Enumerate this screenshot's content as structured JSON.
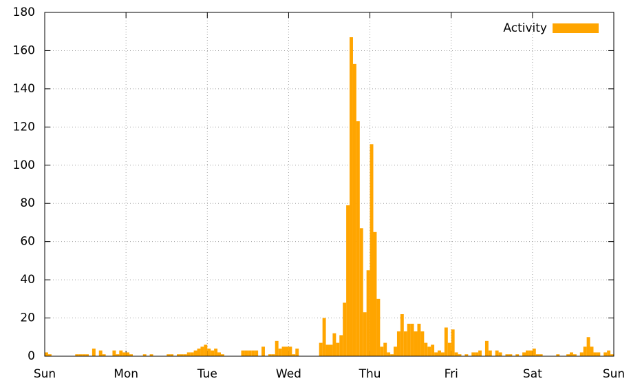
{
  "chart_data": {
    "type": "histogram",
    "series": [
      {
        "name": "Activity",
        "color": "#ffa500",
        "values": [
          2,
          1,
          0,
          0,
          0,
          0,
          0,
          0,
          0,
          1,
          1,
          1,
          1,
          0,
          4,
          0,
          3,
          1,
          0,
          0,
          3,
          1,
          3,
          2,
          2,
          1,
          0,
          0,
          0,
          1,
          0,
          1,
          0,
          0,
          0,
          0,
          1,
          1,
          0,
          1,
          1,
          1,
          2,
          2,
          3,
          4,
          5,
          6,
          4,
          3,
          4,
          2,
          1,
          0,
          0,
          0,
          0,
          0,
          3,
          3,
          3,
          3,
          3,
          0,
          5,
          0,
          1,
          1,
          8,
          4,
          5,
          5,
          5,
          1,
          4,
          0,
          0,
          0,
          0,
          0,
          0,
          7,
          20,
          6,
          6,
          12,
          7,
          11,
          28,
          79,
          167,
          153,
          123,
          67,
          23,
          45,
          111,
          65,
          30,
          5,
          7,
          2,
          1,
          5,
          13,
          22,
          13,
          17,
          17,
          13,
          17,
          13,
          7,
          5,
          6,
          2,
          3,
          2,
          15,
          7,
          14,
          2,
          1,
          0,
          1,
          0,
          2,
          2,
          3,
          0,
          8,
          3,
          0,
          3,
          2,
          0,
          1,
          1,
          0,
          1,
          0,
          2,
          3,
          3,
          4,
          1,
          1,
          0,
          0,
          0,
          0,
          1,
          0,
          0,
          1,
          2,
          1,
          0,
          2,
          5,
          10,
          5,
          2,
          2,
          0,
          2,
          3,
          1
        ]
      }
    ],
    "bins": [
      0,
      1,
      2,
      3,
      4,
      5,
      6,
      7,
      8,
      9,
      10,
      11,
      12,
      13,
      14,
      15,
      16,
      17,
      18,
      19,
      20,
      21,
      22,
      23,
      24,
      25,
      26,
      27,
      28,
      29,
      30,
      31,
      32,
      33,
      34,
      35,
      36,
      37,
      38,
      39,
      40,
      41,
      42,
      43,
      44,
      45,
      46,
      47,
      48,
      49,
      50,
      51,
      52,
      53,
      54,
      55,
      56,
      57,
      58,
      59,
      60,
      61,
      62,
      63,
      64,
      65,
      66,
      67,
      68,
      69,
      70,
      71,
      72,
      73,
      74,
      75,
      76,
      77,
      78,
      79,
      80,
      81,
      82,
      83,
      84,
      85,
      86,
      87,
      88,
      89,
      90,
      91,
      92,
      93,
      94,
      95,
      96,
      97,
      98,
      99,
      100,
      101,
      102,
      103,
      104,
      105,
      106,
      107,
      108,
      109,
      110,
      111,
      112,
      113,
      114,
      115,
      116,
      117,
      118,
      119,
      120,
      121,
      122,
      123,
      124,
      125,
      126,
      127,
      128,
      129,
      130,
      131,
      132,
      133,
      134,
      135,
      136,
      137,
      138,
      139,
      140,
      141,
      142,
      143,
      144,
      145,
      146,
      147,
      148,
      149,
      150,
      151,
      152,
      153,
      154,
      155,
      156,
      157,
      158,
      159,
      160,
      161,
      162,
      163,
      164,
      165,
      166,
      167,
      168
    ],
    "xlim": [
      0,
      168
    ],
    "xticks": [
      {
        "value": 0,
        "label": "Sun"
      },
      {
        "value": 24,
        "label": "Mon"
      },
      {
        "value": 48,
        "label": "Tue"
      },
      {
        "value": 72,
        "label": "Wed"
      },
      {
        "value": 96,
        "label": "Thu"
      },
      {
        "value": 120,
        "label": "Fri"
      },
      {
        "value": 144,
        "label": "Sat"
      },
      {
        "value": 168,
        "label": "Sun"
      }
    ],
    "ylim": [
      0,
      180
    ],
    "yticks": [
      0,
      20,
      40,
      60,
      80,
      100,
      120,
      140,
      160,
      180
    ],
    "grid": true,
    "legend": "top-right"
  }
}
